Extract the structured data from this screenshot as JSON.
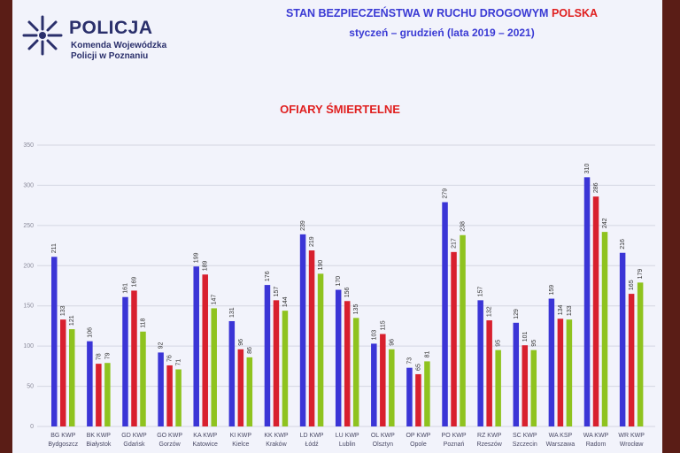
{
  "header": {
    "org_name": "POLICJA",
    "org_line1": "Komenda Wojewódzka",
    "org_line2": "Policji w Poznaniu"
  },
  "title": {
    "line1_main": "STAN BEZPIECZEŃSTWA W RUCHU DROGOWYM",
    "line1_accent": "POLSKA",
    "line2": "styczeń – grudzień (lata 2019 – 2021)"
  },
  "colors": {
    "series1": "#3b35d6",
    "series2": "#d8202e",
    "series3": "#8fc31f",
    "logo": "#2a2f6b"
  },
  "chart_data": {
    "type": "bar",
    "title": "OFIARY ŚMIERTELNE",
    "ylim": [
      0,
      350
    ],
    "yticks": [
      0,
      50,
      100,
      150,
      200,
      250,
      300,
      350
    ],
    "categories": [
      [
        "BG KWP",
        "Bydgoszcz"
      ],
      [
        "BK KWP",
        "Białystok"
      ],
      [
        "GD KWP",
        "Gdańsk"
      ],
      [
        "GO KWP",
        "Gorzów"
      ],
      [
        "KA KWP",
        "Katowice"
      ],
      [
        "KI KWP",
        "Kielce"
      ],
      [
        "KK KWP",
        "Kraków"
      ],
      [
        "LD KWP",
        "Łódź"
      ],
      [
        "LU KWP",
        "Lublin"
      ],
      [
        "OL KWP",
        "Olsztyn"
      ],
      [
        "OP KWP",
        "Opole"
      ],
      [
        "PO KWP",
        "Poznań"
      ],
      [
        "RZ KWP",
        "Rzeszów"
      ],
      [
        "SC KWP",
        "Szczecin"
      ],
      [
        "WA KSP",
        "Warszawa"
      ],
      [
        "WA KWP",
        "Radom"
      ],
      [
        "WR KWP",
        "Wrocław"
      ]
    ],
    "series": [
      {
        "values": [
          211,
          106,
          161,
          92,
          199,
          131,
          176,
          239,
          170,
          103,
          73,
          279,
          157,
          129,
          159,
          310,
          216
        ]
      },
      {
        "values": [
          133,
          78,
          169,
          76,
          189,
          96,
          157,
          219,
          156,
          115,
          65,
          217,
          132,
          101,
          134,
          286,
          165
        ]
      },
      {
        "values": [
          121,
          79,
          118,
          71,
          147,
          86,
          144,
          190,
          135,
          96,
          81,
          238,
          95,
          95,
          133,
          242,
          179
        ]
      }
    ],
    "grid": true
  }
}
